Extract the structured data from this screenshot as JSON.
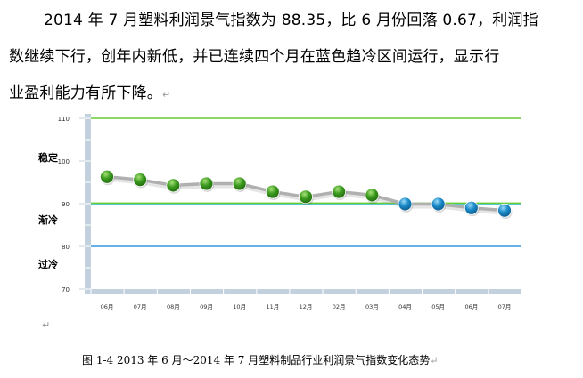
{
  "paragraph": {
    "line1": "2014 年 7 月塑料利润景气指数为 88.35，比 6 月份回落 0.67，利润指",
    "line2": "数继续下行，创年内新低，并已连续四个月在蓝色趋冷区间运行，显示行",
    "line3": "业盈利能力有所下降。",
    "return_mark": "↵"
  },
  "chart_data": {
    "type": "line",
    "title": "",
    "xlabel": "",
    "ylabel": "",
    "categories": [
      "06月",
      "07月",
      "08月",
      "09月",
      "10月",
      "11月",
      "12月",
      "02月",
      "03月",
      "04月",
      "05月",
      "06月",
      "07月"
    ],
    "values": [
      96.3,
      95.6,
      94.3,
      94.7,
      94.7,
      92.8,
      91.6,
      92.8,
      92.0,
      89.9,
      89.9,
      89.0,
      88.4
    ],
    "ylim": [
      70,
      110
    ],
    "yticks": [
      "70",
      "80",
      "90",
      "100",
      "110"
    ],
    "grid": false,
    "reference_lines": [
      {
        "value": 110,
        "color": "#66cc33"
      },
      {
        "value": 90,
        "color": "#66cc33"
      },
      {
        "value": 90,
        "color": "#22bbee"
      },
      {
        "value": 80,
        "color": "#3399dd"
      }
    ],
    "zones": [
      {
        "label": "稳定",
        "color": "#44bb22"
      },
      {
        "label": "渐冷",
        "color": "#22aaee"
      },
      {
        "label": "过冷",
        "color": "#2277cc"
      }
    ],
    "point_colors": {
      "above_90": "#3a9a1e",
      "below_90": "#1a8ac8"
    },
    "line_color": "#b0b0b0"
  },
  "caption": "图 1-4   2013 年 6 月～2014 年 7 月塑料制品行业利润景气指数变化态势",
  "caption_mark": "↵",
  "chart_mark": "↵"
}
